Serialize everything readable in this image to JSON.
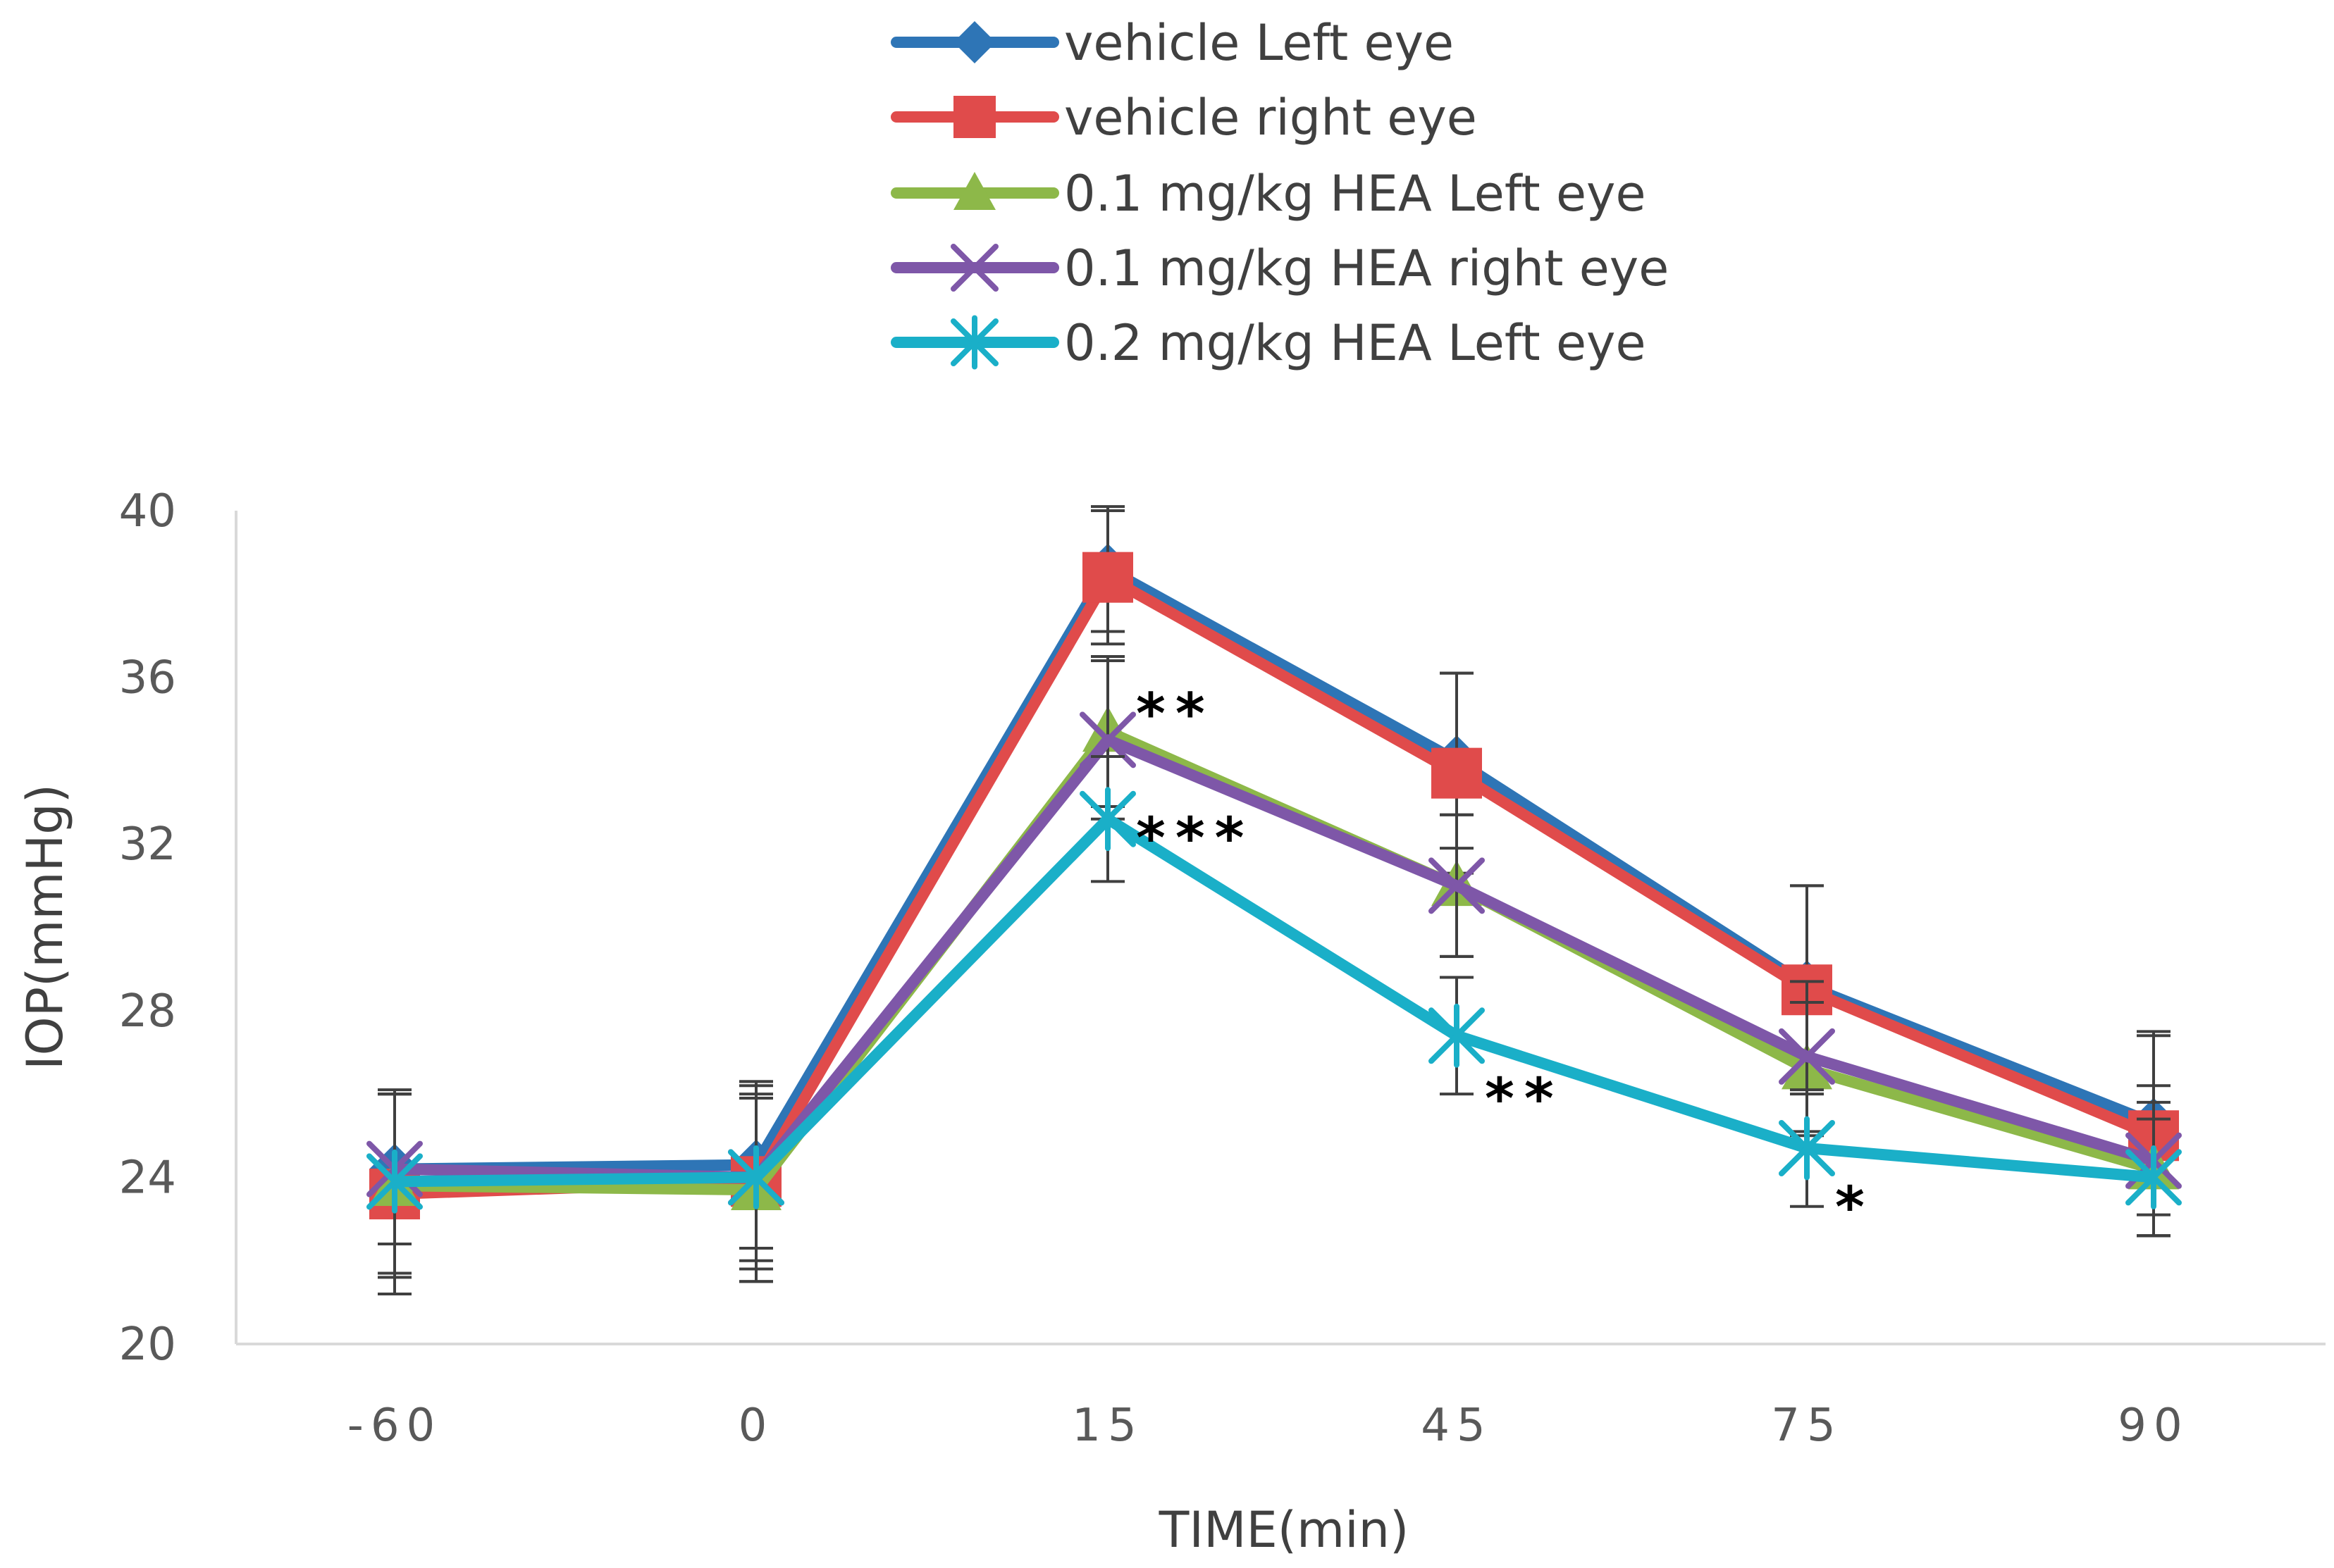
{
  "chart_data": {
    "type": "line",
    "title": "",
    "xlabel": "TIME(min)",
    "ylabel": "IOP(mmHg)",
    "categories": [
      "-60",
      "0",
      "15",
      "45",
      "75",
      "90"
    ],
    "ylim": [
      20,
      40
    ],
    "yticks": [
      "20",
      "24",
      "28",
      "32",
      "36",
      "40"
    ],
    "grid": false,
    "legend_position": "top",
    "series": [
      {
        "name": "vehicle Left eye",
        "color": "#2E75B6",
        "marker": "diamond",
        "values": [
          24.2,
          24.3,
          38.6,
          34.0,
          28.6,
          25.3
        ],
        "errors": [
          1.8,
          2.0,
          1.5,
          2.1,
          2.4,
          2.2
        ]
      },
      {
        "name": "vehicle right eye",
        "color": "#E04B4B",
        "marker": "square",
        "values": [
          23.6,
          23.9,
          38.4,
          33.7,
          28.5,
          25.0
        ],
        "errors": [
          2.4,
          2.4,
          1.6,
          2.4,
          2.5,
          2.4
        ]
      },
      {
        "name": "0.1 mg/kg HEA  Left eye",
        "color": "#8DB849",
        "marker": "triangle",
        "values": [
          23.8,
          23.7,
          34.7,
          31.0,
          26.6,
          24.2
        ],
        "errors": [
          2.2,
          2.2,
          1.8,
          1.7,
          1.6,
          1.6
        ]
      },
      {
        "name": "0.1 mg/kg HEA  right eye",
        "color": "#7E57A8",
        "marker": "x",
        "values": [
          24.2,
          24.0,
          34.5,
          31.0,
          26.9,
          24.4
        ],
        "errors": [
          1.8,
          2.0,
          1.9,
          1.7,
          1.8,
          1.8
        ]
      },
      {
        "name": "0.2 mg/kg  HEA Left eye",
        "color": "#1AAFC8",
        "marker": "star",
        "values": [
          23.9,
          24.0,
          32.6,
          27.4,
          24.7,
          24.0
        ],
        "errors": [
          2.2,
          2.2,
          1.5,
          1.4,
          1.4,
          1.4
        ]
      }
    ],
    "annotations": [
      {
        "category": "15",
        "text": "**",
        "near_value": 35.0
      },
      {
        "category": "15",
        "text": "***",
        "near_value": 32.6
      },
      {
        "category": "45",
        "text": "**",
        "near_value": 26.6
      },
      {
        "category": "75",
        "text": "*",
        "near_value": 24.0
      }
    ]
  }
}
